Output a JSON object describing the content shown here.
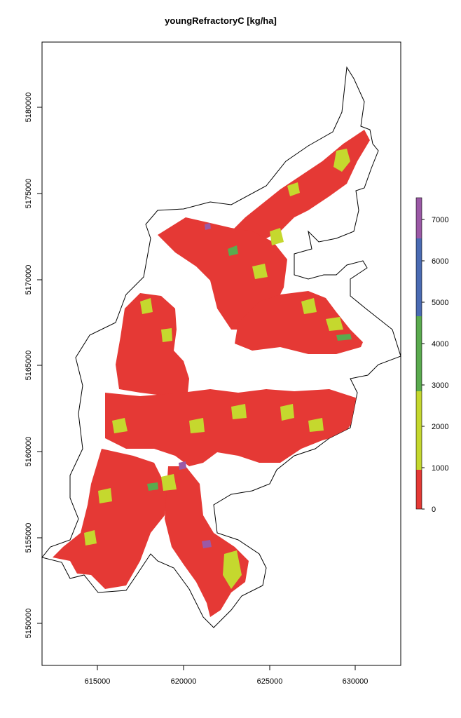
{
  "title": "youngRefractoryC [kg/ha]",
  "map_data": {
    "type": "raster-map",
    "x_ticks": [
      "615000",
      "620000",
      "625000",
      "630000"
    ],
    "y_ticks": [
      "5150000",
      "5155000",
      "5160000",
      "5165000",
      "5170000",
      "5175000",
      "5180000"
    ],
    "legend": {
      "breaks": [
        0,
        1000,
        2000,
        3000,
        4000,
        5000,
        6000,
        7000
      ],
      "labels": [
        "0",
        "1000",
        "2000",
        "3000",
        "4000",
        "5000",
        "6000",
        "7000"
      ],
      "classes": [
        {
          "from": 0,
          "to": 1000,
          "color": "#e53935"
        },
        {
          "from": 1000,
          "to": 2000,
          "color": "#c5d82e"
        },
        {
          "from": 2000,
          "to": 3000,
          "color": "#c5d82e"
        },
        {
          "from": 3000,
          "to": 4000,
          "color": "#5aab4e"
        },
        {
          "from": 4000,
          "to": 5000,
          "color": "#5aab4e"
        },
        {
          "from": 5000,
          "to": 6000,
          "color": "#4a6bb3"
        },
        {
          "from": 6000,
          "to": 7000,
          "color": "#4a6bb3"
        },
        {
          "from": 7000,
          "to": 7500,
          "color": "#9b59a6"
        }
      ]
    },
    "colors": {
      "low": "#e53935",
      "mid": "#c5d82e",
      "green": "#5aab4e",
      "blue": "#4a6bb3",
      "purple": "#9b59a6"
    }
  }
}
